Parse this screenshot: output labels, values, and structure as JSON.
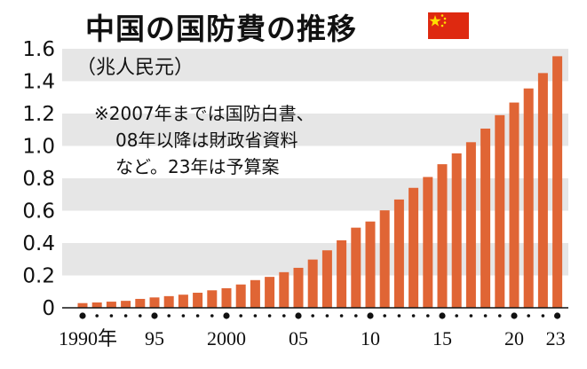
{
  "title": "中国の国防費の推移",
  "unit_label": "（兆人民元）",
  "note_lines": [
    "※2007年までは国防白書、",
    "08年以降は財政省資料",
    "など。23年は予算案"
  ],
  "colors": {
    "bar": "#e06535",
    "band": "#e6e6e6",
    "flag_red": "#de2910",
    "flag_star": "#ffde00"
  },
  "chart_data": {
    "type": "bar",
    "title": "中国の国防費の推移",
    "ylabel": "（兆人民元）",
    "xlabel": "",
    "ylim": [
      0,
      1.6
    ],
    "yticks": [
      "0",
      "0.2",
      "0.4",
      "0.6",
      "0.8",
      "1.0",
      "1.2",
      "1.4",
      "1.6"
    ],
    "xtick_labels": [
      "1990年",
      "95",
      "2000",
      "05",
      "10",
      "15",
      "20",
      "23"
    ],
    "grid": "alternating horizontal bands",
    "categories": [
      1990,
      1991,
      1992,
      1993,
      1994,
      1995,
      1996,
      1997,
      1998,
      1999,
      2000,
      2001,
      2002,
      2003,
      2004,
      2005,
      2006,
      2007,
      2008,
      2009,
      2010,
      2011,
      2012,
      2013,
      2014,
      2015,
      2016,
      2017,
      2018,
      2019,
      2020,
      2021,
      2022,
      2023
    ],
    "values": [
      0.029,
      0.033,
      0.038,
      0.043,
      0.055,
      0.064,
      0.072,
      0.081,
      0.093,
      0.108,
      0.121,
      0.144,
      0.171,
      0.191,
      0.22,
      0.247,
      0.298,
      0.355,
      0.417,
      0.495,
      0.533,
      0.602,
      0.669,
      0.741,
      0.808,
      0.887,
      0.954,
      1.023,
      1.107,
      1.19,
      1.268,
      1.355,
      1.45,
      1.554
    ]
  }
}
